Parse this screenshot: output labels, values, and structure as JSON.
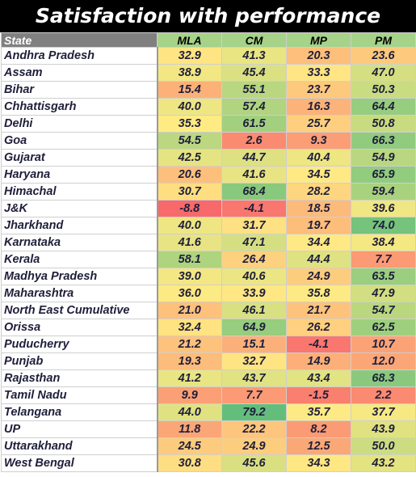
{
  "chart_data": {
    "type": "heatmap",
    "title": "Satisfaction with performance",
    "row_header": "State",
    "columns": [
      "MLA",
      "CM",
      "MP",
      "PM"
    ],
    "header_color": "#808080",
    "column_header_color": "#a6d387",
    "colorscale": [
      "#f8696b",
      "#ffeb84",
      "#63be7b"
    ],
    "rows": [
      {
        "state": "Andhra Pradesh",
        "values": [
          32.9,
          41.3,
          20.3,
          23.6
        ]
      },
      {
        "state": "Assam",
        "values": [
          38.9,
          45.4,
          33.3,
          47.0
        ]
      },
      {
        "state": "Bihar",
        "values": [
          15.4,
          55.1,
          23.7,
          50.3
        ]
      },
      {
        "state": "Chhattisgarh",
        "values": [
          40.0,
          57.4,
          16.3,
          64.4
        ]
      },
      {
        "state": "Delhi",
        "values": [
          35.3,
          61.5,
          25.7,
          50.8
        ]
      },
      {
        "state": "Goa",
        "values": [
          54.5,
          2.6,
          9.3,
          66.3
        ]
      },
      {
        "state": "Gujarat",
        "values": [
          42.5,
          44.7,
          40.4,
          54.9
        ]
      },
      {
        "state": "Haryana",
        "values": [
          20.6,
          41.6,
          34.5,
          65.9
        ]
      },
      {
        "state": "Himachal",
        "values": [
          30.7,
          68.4,
          28.2,
          59.4
        ]
      },
      {
        "state": "J&K",
        "values": [
          -8.8,
          -4.1,
          18.5,
          39.6
        ]
      },
      {
        "state": "Jharkhand",
        "values": [
          40.0,
          31.7,
          19.7,
          74.0
        ]
      },
      {
        "state": "Karnataka",
        "values": [
          41.6,
          47.1,
          34.4,
          38.4
        ]
      },
      {
        "state": "Kerala",
        "values": [
          58.1,
          26.4,
          44.4,
          7.7
        ]
      },
      {
        "state": "Madhya Pradesh",
        "values": [
          39.0,
          40.6,
          24.9,
          63.5
        ]
      },
      {
        "state": "Maharashtra",
        "values": [
          36.0,
          33.9,
          35.8,
          47.9
        ]
      },
      {
        "state": "North East Cumulative",
        "values": [
          21.0,
          46.1,
          21.7,
          54.7
        ]
      },
      {
        "state": "Orissa",
        "values": [
          32.4,
          64.9,
          26.2,
          62.5
        ]
      },
      {
        "state": "Puducherry",
        "values": [
          21.2,
          15.1,
          -4.1,
          10.7
        ]
      },
      {
        "state": "Punjab",
        "values": [
          19.3,
          32.7,
          14.9,
          12.0
        ]
      },
      {
        "state": "Rajasthan",
        "values": [
          41.2,
          43.7,
          43.4,
          68.3
        ]
      },
      {
        "state": "Tamil  Nadu",
        "values": [
          9.9,
          7.7,
          -1.5,
          2.2
        ]
      },
      {
        "state": "Telangana",
        "values": [
          44.0,
          79.2,
          35.7,
          37.7
        ]
      },
      {
        "state": "UP",
        "values": [
          11.8,
          22.2,
          8.2,
          43.9
        ]
      },
      {
        "state": "Uttarakhand",
        "values": [
          24.5,
          24.9,
          12.5,
          50.0
        ]
      },
      {
        "state": "West Bengal",
        "values": [
          30.8,
          45.6,
          34.3,
          43.2
        ]
      }
    ]
  }
}
